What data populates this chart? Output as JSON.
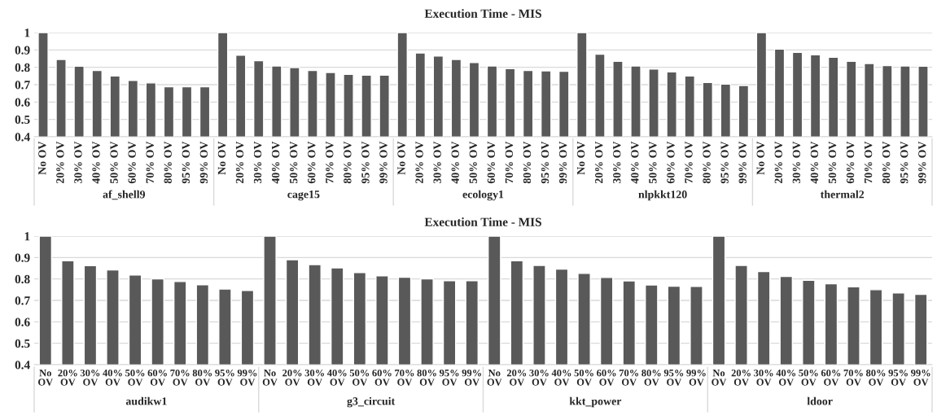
{
  "chart_data": [
    {
      "type": "bar",
      "title": "Execution Time - MIS",
      "color": "#595959",
      "categories": [
        "No OV",
        "20% OV",
        "30% OV",
        "40% OV",
        "50% OV",
        "60% OV",
        "70% OV",
        "80% OV",
        "95% OV",
        "99% OV",
        "No OV",
        "20% OV",
        "30% OV",
        "40% OV",
        "50% OV",
        "60% OV",
        "70% OV",
        "80% OV",
        "95% OV",
        "99% OV",
        "No OV",
        "20% OV",
        "30% OV",
        "40% OV",
        "50% OV",
        "60% OV",
        "70% OV",
        "80% OV",
        "95% OV",
        "99% OV",
        "No OV",
        "20% OV",
        "30% OV",
        "40% OV",
        "50% OV",
        "60% OV",
        "70% OV",
        "80% OV",
        "95% OV",
        "99% OV",
        "No OV",
        "20% OV",
        "30% OV",
        "40% OV",
        "50% OV",
        "60% OV",
        "70% OV",
        "80% OV",
        "95% OV",
        "99% OV"
      ],
      "values": [
        1,
        0.845,
        0.806,
        0.782,
        0.75,
        0.724,
        0.71,
        0.688,
        0.688,
        0.688,
        1,
        0.87,
        0.838,
        0.808,
        0.798,
        0.782,
        0.77,
        0.76,
        0.755,
        0.755,
        1,
        0.882,
        0.865,
        0.845,
        0.827,
        0.808,
        0.792,
        0.782,
        0.78,
        0.777,
        1,
        0.876,
        0.835,
        0.808,
        0.79,
        0.773,
        0.75,
        0.713,
        0.703,
        0.695,
        1,
        0.905,
        0.886,
        0.872,
        0.858,
        0.835,
        0.822,
        0.81,
        0.808,
        0.806
      ],
      "annotations": [
        "af_shell9",
        "cage15",
        "ecology1",
        "nlpkkt120",
        "thermal2"
      ],
      "ylim": [
        0.4,
        1
      ],
      "yticks": [
        0.4,
        0.5,
        0.6,
        0.7,
        0.8,
        0.9,
        1
      ],
      "grid": "y"
    },
    {
      "type": "bar",
      "title": "Execution Time - MIS",
      "color": "#595959",
      "categories": [
        "No OV",
        "20% OV",
        "30% OV",
        "40% OV",
        "50% OV",
        "60% OV",
        "70% OV",
        "80% OV",
        "95% OV",
        "99% OV",
        "No OV",
        "20% OV",
        "30% OV",
        "40% OV",
        "50% OV",
        "60% OV",
        "70% OV",
        "80% OV",
        "95% OV",
        "99% OV",
        "No OV",
        "20% OV",
        "30% OV",
        "40% OV",
        "50% OV",
        "60% OV",
        "70% OV",
        "80% OV",
        "95% OV",
        "99% OV",
        "No OV",
        "20% OV",
        "30% OV",
        "40% OV",
        "50% OV",
        "60% OV",
        "70% OV",
        "80% OV",
        "95% OV",
        "99% OV"
      ],
      "values": [
        1,
        0.885,
        0.862,
        0.842,
        0.818,
        0.8,
        0.788,
        0.773,
        0.753,
        0.746,
        1,
        0.89,
        0.867,
        0.852,
        0.83,
        0.815,
        0.808,
        0.8,
        0.792,
        0.792,
        1,
        0.885,
        0.863,
        0.846,
        0.826,
        0.807,
        0.791,
        0.772,
        0.766,
        0.765,
        1,
        0.863,
        0.835,
        0.812,
        0.794,
        0.778,
        0.763,
        0.75,
        0.735,
        0.728
      ],
      "annotations": [
        "audikw1",
        "g3_circuit",
        "kkt_power",
        "ldoor"
      ],
      "ylim": [
        0.4,
        1
      ],
      "yticks": [
        0.4,
        0.5,
        0.6,
        0.7,
        0.8,
        0.9,
        1
      ],
      "grid": "y"
    }
  ]
}
